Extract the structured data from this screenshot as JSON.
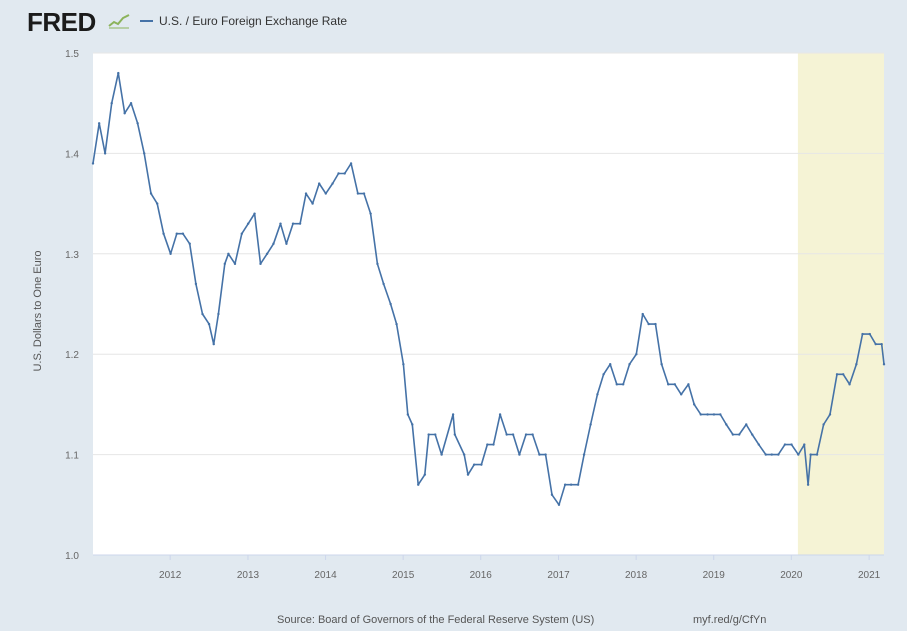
{
  "header": {
    "logo_text": "FRED",
    "series_legend": "U.S. / Euro Foreign Exchange Rate"
  },
  "footer": {
    "source": "Source: Board of Governors of the Federal Reserve System (US)",
    "short_url": "myf.red/g/CfYn"
  },
  "colors": {
    "line": "#4572a7",
    "recession_shade": "#f5f3d5",
    "plot_background": "#ffffff",
    "page_background": "#e1e9f0",
    "gridline": "#e6e6e6"
  },
  "chart_data": {
    "type": "line",
    "title": "",
    "xlabel": "",
    "ylabel": "U.S. Dollars to One Euro",
    "ylim": [
      1.0,
      1.5
    ],
    "xlim": [
      "2011-01-03",
      "2021-03-12"
    ],
    "y_ticks": [
      "1.0",
      "1.1",
      "1.2",
      "1.3",
      "1.4",
      "1.5"
    ],
    "x_ticks": [
      "2012",
      "2013",
      "2014",
      "2015",
      "2016",
      "2017",
      "2018",
      "2019",
      "2020",
      "2021"
    ],
    "grid": true,
    "legend_position": "top-left",
    "shaded_region": {
      "start": "2020-02-01",
      "end": "2021-03-12"
    },
    "series": [
      {
        "name": "U.S. / Euro Foreign Exchange Rate",
        "x": [
          "2011-01-03",
          "2011-02-01",
          "2011-03-01",
          "2011-04-01",
          "2011-05-02",
          "2011-06-01",
          "2011-07-01",
          "2011-08-01",
          "2011-09-01",
          "2011-10-03",
          "2011-11-01",
          "2011-12-01",
          "2012-01-03",
          "2012-02-01",
          "2012-03-01",
          "2012-04-02",
          "2012-05-01",
          "2012-06-01",
          "2012-07-02",
          "2012-07-24",
          "2012-08-15",
          "2012-09-14",
          "2012-10-01",
          "2012-11-01",
          "2012-12-03",
          "2013-01-02",
          "2013-02-01",
          "2013-03-01",
          "2013-04-01",
          "2013-05-01",
          "2013-06-03",
          "2013-07-01",
          "2013-08-01",
          "2013-09-03",
          "2013-10-01",
          "2013-11-01",
          "2013-12-02",
          "2014-01-02",
          "2014-02-03",
          "2014-03-03",
          "2014-04-01",
          "2014-05-01",
          "2014-06-02",
          "2014-07-01",
          "2014-08-01",
          "2014-09-02",
          "2014-10-01",
          "2014-11-03",
          "2014-12-01",
          "2015-01-02",
          "2015-01-23",
          "2015-02-13",
          "2015-03-13",
          "2015-04-13",
          "2015-05-01",
          "2015-06-01",
          "2015-07-01",
          "2015-08-24",
          "2015-09-01",
          "2015-10-15",
          "2015-11-02",
          "2015-12-01",
          "2016-01-04",
          "2016-02-01",
          "2016-03-01",
          "2016-04-01",
          "2016-05-02",
          "2016-06-01",
          "2016-07-01",
          "2016-08-01",
          "2016-09-01",
          "2016-10-03",
          "2016-11-01",
          "2016-12-01",
          "2017-01-03",
          "2017-02-01",
          "2017-03-01",
          "2017-04-03",
          "2017-05-01",
          "2017-06-01",
          "2017-07-03",
          "2017-08-01",
          "2017-09-01",
          "2017-10-02",
          "2017-11-01",
          "2017-12-01",
          "2018-01-02",
          "2018-02-01",
          "2018-03-01",
          "2018-04-02",
          "2018-05-01",
          "2018-06-01",
          "2018-07-02",
          "2018-08-01",
          "2018-09-04",
          "2018-10-01",
          "2018-11-01",
          "2018-12-03",
          "2019-01-02",
          "2019-02-01",
          "2019-03-01",
          "2019-04-01",
          "2019-05-01",
          "2019-06-03",
          "2019-07-01",
          "2019-08-01",
          "2019-09-03",
          "2019-10-01",
          "2019-11-01",
          "2019-12-02",
          "2020-01-02",
          "2020-02-03",
          "2020-03-02",
          "2020-03-20",
          "2020-04-01",
          "2020-05-01",
          "2020-06-01",
          "2020-07-01",
          "2020-08-03",
          "2020-09-01",
          "2020-10-01",
          "2020-11-02",
          "2020-12-01",
          "2021-01-04",
          "2021-02-01",
          "2021-03-01",
          "2021-03-12"
        ],
        "values": [
          1.39,
          1.43,
          1.4,
          1.45,
          1.48,
          1.44,
          1.45,
          1.43,
          1.4,
          1.36,
          1.35,
          1.32,
          1.3,
          1.32,
          1.32,
          1.31,
          1.27,
          1.24,
          1.23,
          1.21,
          1.24,
          1.29,
          1.3,
          1.29,
          1.32,
          1.33,
          1.34,
          1.29,
          1.3,
          1.31,
          1.33,
          1.31,
          1.33,
          1.33,
          1.36,
          1.35,
          1.37,
          1.36,
          1.37,
          1.38,
          1.38,
          1.39,
          1.36,
          1.36,
          1.34,
          1.29,
          1.27,
          1.25,
          1.23,
          1.19,
          1.14,
          1.13,
          1.07,
          1.08,
          1.12,
          1.12,
          1.1,
          1.14,
          1.12,
          1.1,
          1.08,
          1.09,
          1.09,
          1.11,
          1.11,
          1.14,
          1.12,
          1.12,
          1.1,
          1.12,
          1.12,
          1.1,
          1.1,
          1.06,
          1.05,
          1.07,
          1.07,
          1.07,
          1.1,
          1.13,
          1.16,
          1.18,
          1.19,
          1.17,
          1.17,
          1.19,
          1.2,
          1.24,
          1.23,
          1.23,
          1.19,
          1.17,
          1.17,
          1.16,
          1.17,
          1.15,
          1.14,
          1.14,
          1.14,
          1.14,
          1.13,
          1.12,
          1.12,
          1.13,
          1.12,
          1.11,
          1.1,
          1.1,
          1.1,
          1.11,
          1.11,
          1.1,
          1.11,
          1.07,
          1.1,
          1.1,
          1.13,
          1.14,
          1.18,
          1.18,
          1.17,
          1.19,
          1.22,
          1.22,
          1.21,
          1.21,
          1.19
        ]
      }
    ]
  }
}
